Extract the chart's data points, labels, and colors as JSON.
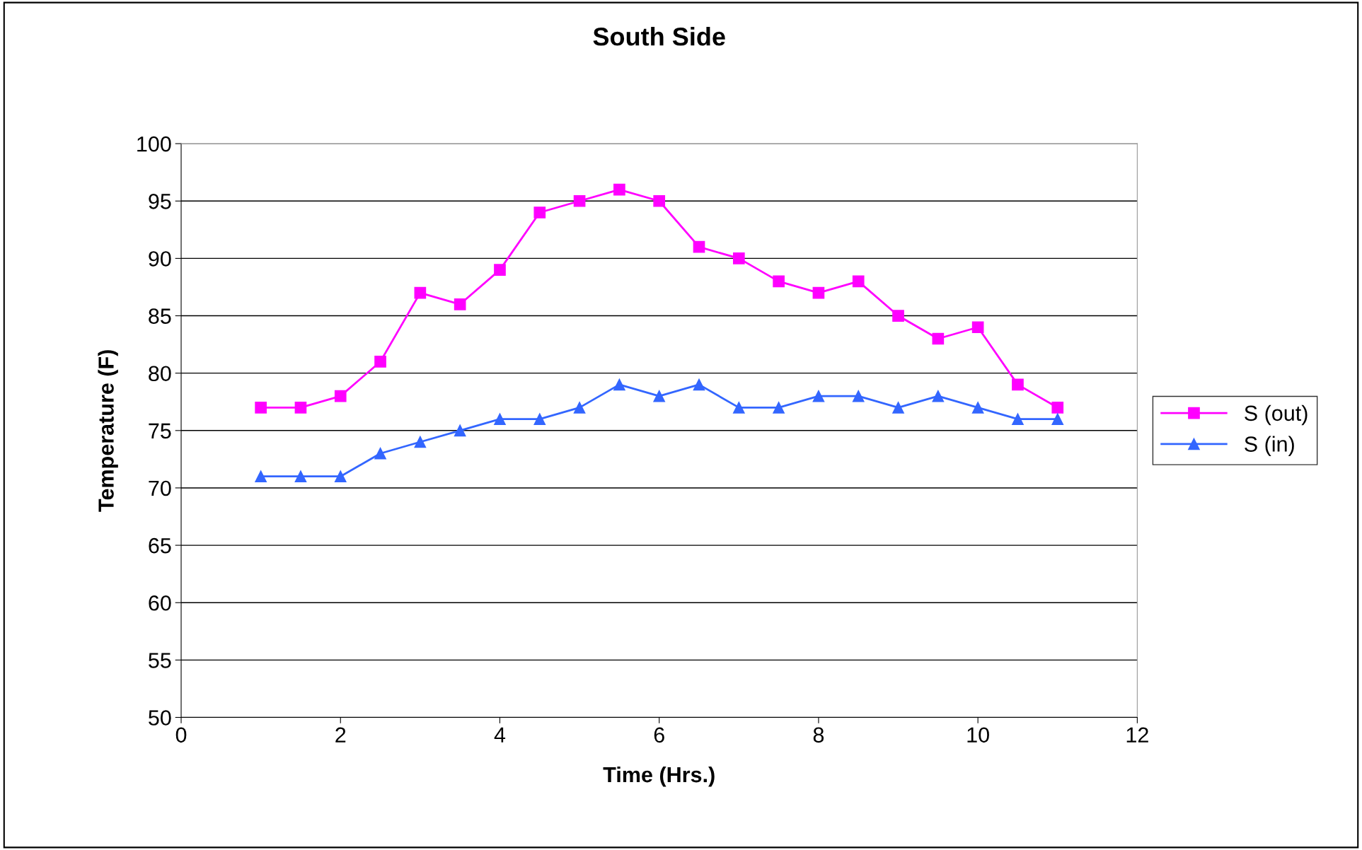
{
  "chart_data": {
    "type": "line",
    "title": "South Side",
    "xlabel": "Time (Hrs.)",
    "ylabel": "Temperature (F)",
    "x": [
      1,
      1.5,
      2,
      2.5,
      3,
      3.5,
      4,
      4.5,
      5,
      5.5,
      6,
      6.5,
      7,
      7.5,
      8,
      8.5,
      9,
      9.5,
      10,
      10.5,
      11
    ],
    "series": [
      {
        "name": "S (out)",
        "color": "#ff00ff",
        "marker": "square",
        "values": [
          77,
          77,
          78,
          81,
          87,
          86,
          89,
          94,
          95,
          96,
          95,
          91,
          90,
          88,
          87,
          88,
          85,
          83,
          84,
          79,
          77
        ]
      },
      {
        "name": "S (in)",
        "color": "#3366ff",
        "marker": "triangle",
        "values": [
          71,
          71,
          71,
          73,
          74,
          75,
          76,
          76,
          77,
          79,
          78,
          79,
          77,
          77,
          78,
          78,
          77,
          78,
          77,
          76,
          76
        ]
      }
    ],
    "xlim": [
      0,
      12
    ],
    "xticks": [
      0,
      2,
      4,
      6,
      8,
      10,
      12
    ],
    "ylim": [
      50,
      100
    ],
    "yticks": [
      50,
      55,
      60,
      65,
      70,
      75,
      80,
      85,
      90,
      95,
      100
    ],
    "grid": "y",
    "legend": "right",
    "line_style": "solid"
  }
}
